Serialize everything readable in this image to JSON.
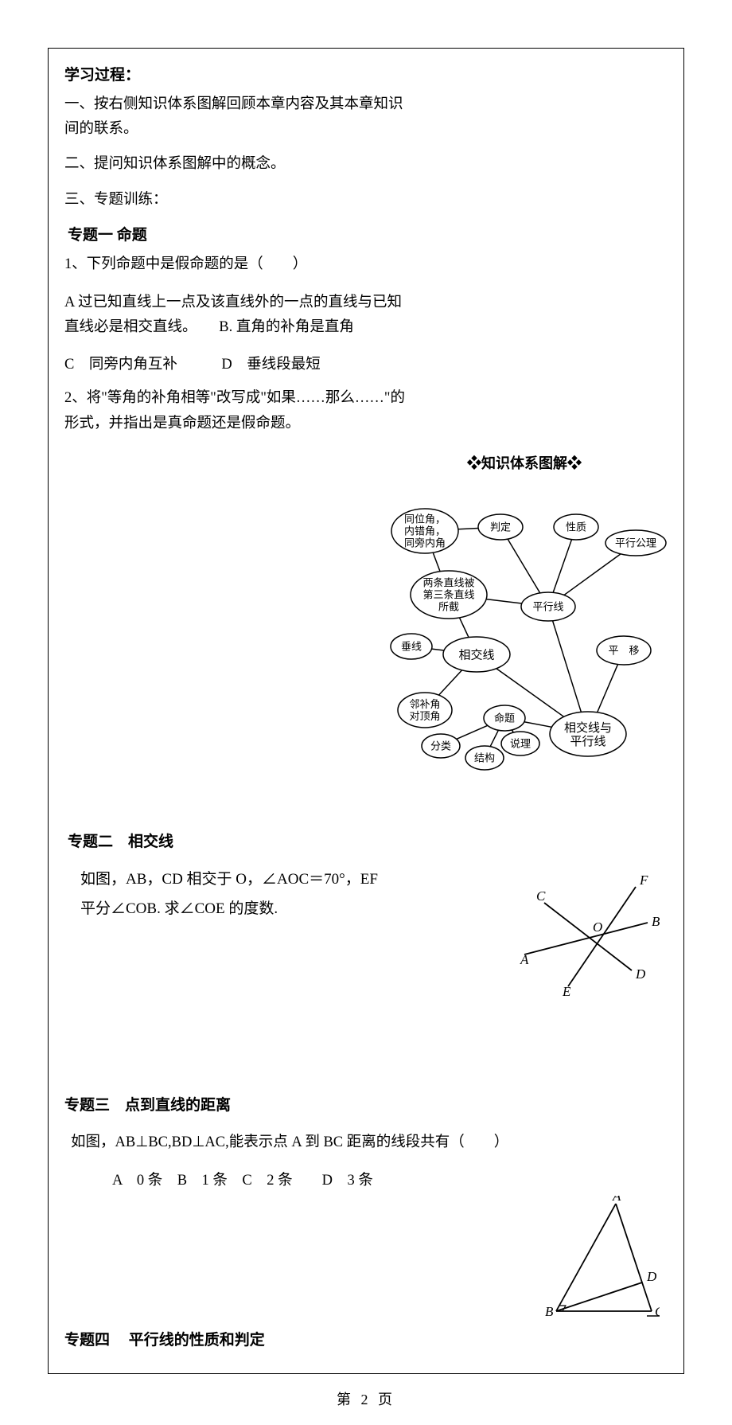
{
  "page": {
    "footer": "第 2 页"
  },
  "header": {
    "learning_process": "学习过程："
  },
  "intro": {
    "p1": "一、按右侧知识体系图解回顾本章内容及其本章知识间的联系。",
    "p2": "二、提问知识体系图解中的概念。",
    "p3": "三、专题训练："
  },
  "topic1": {
    "title": "专题一 命题",
    "q1_stem": "1、下列命题中是假命题的是（　　）",
    "opt_a": "A 过已知直线上一点及该直线外的一点的直线与已知直线必是相交直线。　　B. 直角的补角是直角",
    "opt_cd": "C　同旁内角互补　　　D　垂线段最短",
    "q2": "2、将\"等角的补角相等\"改写成\"如果……那么……\"的形式，并指出是真命题还是假命题。"
  },
  "topic2": {
    "title": "专题二　相交线",
    "stem_l1": "如图，AB，CD 相交于 O，∠AOC＝70°，EF",
    "stem_l2": "平分∠COB. 求∠COE 的度数."
  },
  "topic3": {
    "title": "专题三　点到直线的距离",
    "stem": "如图，AB⊥BC,BD⊥AC,能表示点 A 到 BC 距离的线段共有（　　）",
    "opts": "A　0 条　B　1 条　C　2 条　　D　3 条"
  },
  "topic4": {
    "title": "专题四　 平行线的性质和判定"
  },
  "knowledge_map": {
    "title_l": "❖",
    "title": "知识体系图解",
    "title_r": "❖",
    "nodes": {
      "root": "相交线与\n平行线",
      "n_cmd": "命题",
      "n_cls": "分类",
      "n_struct": "结构",
      "n_reason": "说理",
      "n_intersect": "相交线",
      "n_perp": "垂线",
      "n_adj": "邻补角\n对顶角",
      "n_cut": "两条直线被\n第三条直线\n所截",
      "n_angles": "同位角，\n内错角，\n同旁内角",
      "n_judge": "判定",
      "n_prop": "性质",
      "n_parallel": "平行线",
      "n_axiom": "平行公理",
      "n_trans": "平　移"
    },
    "style": {
      "bg": "#ffffff",
      "node_fill": "#ffffff",
      "node_stroke": "#000000",
      "edge_stroke": "#000000",
      "font_size_small": 13,
      "font_size_big": 15,
      "stroke_width": 1.5
    }
  },
  "geo1": {
    "labels": {
      "A": "A",
      "B": "B",
      "C": "C",
      "D": "D",
      "E": "E",
      "F": "F",
      "O": "O"
    },
    "style": {
      "stroke": "#000000",
      "sw": 1.8,
      "font_size": 17
    }
  },
  "geo2": {
    "labels": {
      "A": "A",
      "B": "B",
      "C": "C",
      "D": "D"
    },
    "style": {
      "stroke": "#000000",
      "sw": 1.8,
      "font_size": 17
    }
  }
}
